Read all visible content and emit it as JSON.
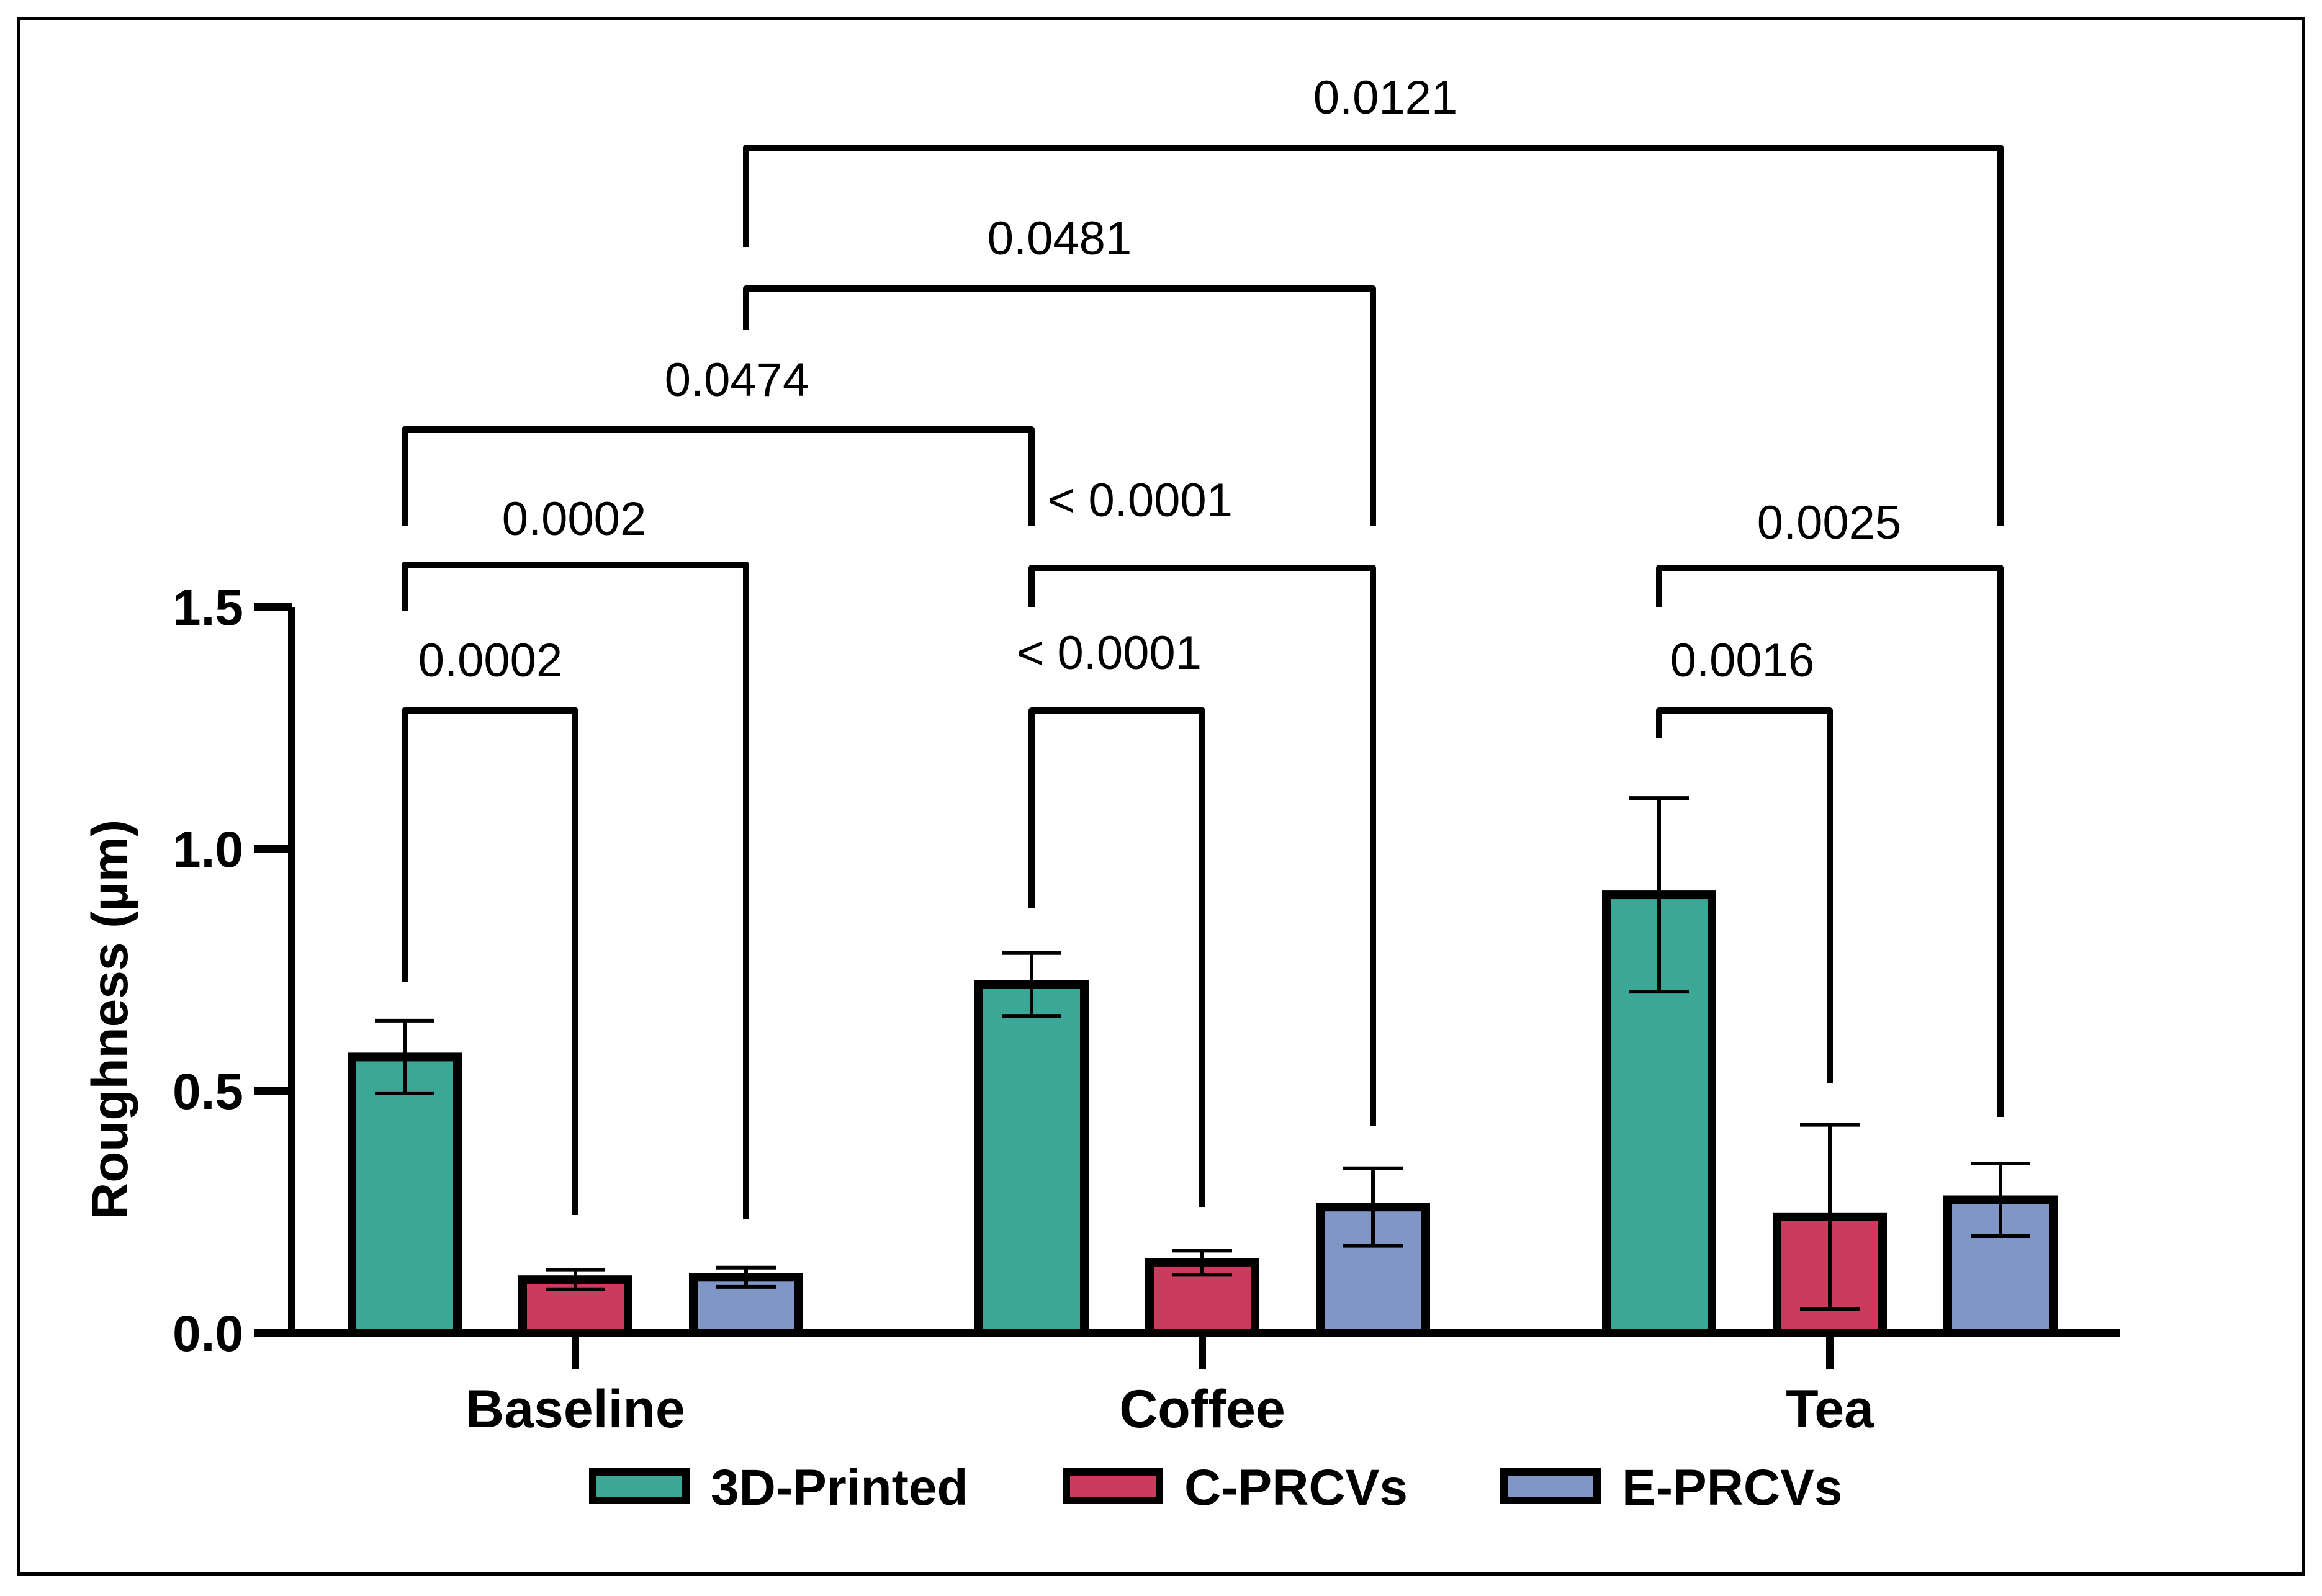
{
  "chart_data": {
    "type": "bar",
    "title": "",
    "xlabel": "",
    "ylabel": "Roughness (µm)",
    "ylim": [
      0,
      1.5
    ],
    "yticks": [
      "0.0",
      "0.5",
      "1.0",
      "1.5"
    ],
    "ytick_values": [
      0,
      0.5,
      1.0,
      1.5
    ],
    "categories": [
      "Baseline",
      "Coffee",
      "Tea"
    ],
    "series": [
      {
        "name": "3D-Printed",
        "color": "#3ba897",
        "values": [
          0.57,
          0.72,
          0.905
        ],
        "errors": [
          0.075,
          0.065,
          0.2
        ]
      },
      {
        "name": "C-PRCVs",
        "color": "#cc3a5e",
        "values": [
          0.11,
          0.145,
          0.24
        ],
        "errors": [
          0.02,
          0.025,
          0.19
        ]
      },
      {
        "name": "E-PRCVs",
        "color": "#7f96c7",
        "values": [
          0.115,
          0.26,
          0.275
        ],
        "errors": [
          0.02,
          0.08,
          0.075
        ]
      }
    ],
    "legend_position": "bottom",
    "significance": [
      {
        "label": "0.0002",
        "from": [
          0,
          0
        ],
        "to": [
          0,
          1
        ]
      },
      {
        "label": "0.0002",
        "from": [
          0,
          0
        ],
        "to": [
          0,
          2
        ]
      },
      {
        "label": "0.0474",
        "from": [
          0,
          0
        ],
        "to": [
          1,
          0
        ]
      },
      {
        "label": "0.0481",
        "from": [
          0,
          2
        ],
        "to": [
          1,
          2
        ]
      },
      {
        "label": "0.0121",
        "from": [
          0,
          2
        ],
        "to": [
          2,
          2
        ]
      },
      {
        "label": "< 0.0001",
        "from": [
          1,
          0
        ],
        "to": [
          1,
          1
        ]
      },
      {
        "label": "< 0.0001",
        "from": [
          1,
          0
        ],
        "to": [
          1,
          2
        ]
      },
      {
        "label": "0.0016",
        "from": [
          2,
          0
        ],
        "to": [
          2,
          1
        ]
      },
      {
        "label": "0.0025",
        "from": [
          2,
          0
        ],
        "to": [
          2,
          2
        ]
      }
    ]
  }
}
